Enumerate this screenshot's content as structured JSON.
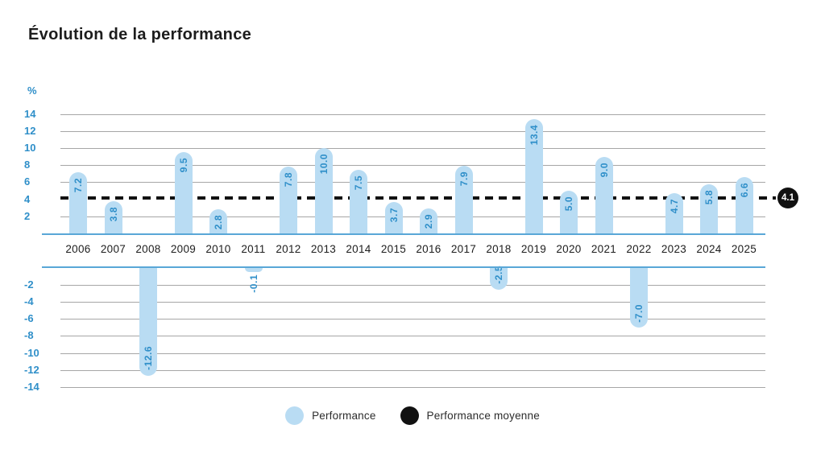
{
  "title": "Évolution de la performance",
  "chart_data": {
    "type": "bar",
    "unit_label": "%",
    "categories": [
      "2006",
      "2007",
      "2008",
      "2009",
      "2010",
      "2011",
      "2012",
      "2013",
      "2014",
      "2015",
      "2016",
      "2017",
      "2018",
      "2019",
      "2020",
      "2021",
      "2022",
      "2023",
      "2024",
      "2025"
    ],
    "values": [
      7.2,
      3.8,
      -12.6,
      9.5,
      2.8,
      -0.1,
      7.8,
      10.0,
      7.5,
      3.7,
      2.9,
      7.9,
      -2.5,
      13.4,
      5.0,
      9.0,
      -7.0,
      4.7,
      5.8,
      6.6
    ],
    "value_labels": [
      "7.2",
      "3.8",
      "-12.6",
      "9.5",
      "2.8",
      "-0.1",
      "7.8",
      "10.0",
      "7.5",
      "3.7",
      "2.9",
      "7.9",
      "-2.5",
      "13.4",
      "5.0",
      "9.0",
      "-7.0",
      "4.7",
      "5.8",
      "6.6"
    ],
    "series_name": "Performance",
    "average_series_name": "Performance moyenne",
    "average": 4.1,
    "average_label": "4.1",
    "y_ticks": [
      14,
      12,
      10,
      8,
      6,
      4,
      2,
      -2,
      -4,
      -6,
      -8,
      -10,
      -12,
      -14
    ],
    "y_gridlines": [
      14,
      12,
      10,
      8,
      6,
      2,
      -2,
      -4,
      -6,
      -8,
      -10,
      -12,
      -14
    ],
    "ylim": [
      -14,
      14
    ],
    "grid": true,
    "legend_position": "bottom",
    "colors": {
      "bar": "#b9dcf3",
      "value_label": "#2f8fc9",
      "axis_label": "#2f8fc9",
      "gridline": "#a6a6a6",
      "baseline": "#59a7d7",
      "average_line": "#111111",
      "badge_bg": "#111111",
      "badge_text": "#ffffff"
    }
  },
  "legend": {
    "items": [
      {
        "label": "Performance",
        "color": "#b9dcf3"
      },
      {
        "label": "Performance moyenne",
        "color": "#111111"
      }
    ]
  }
}
